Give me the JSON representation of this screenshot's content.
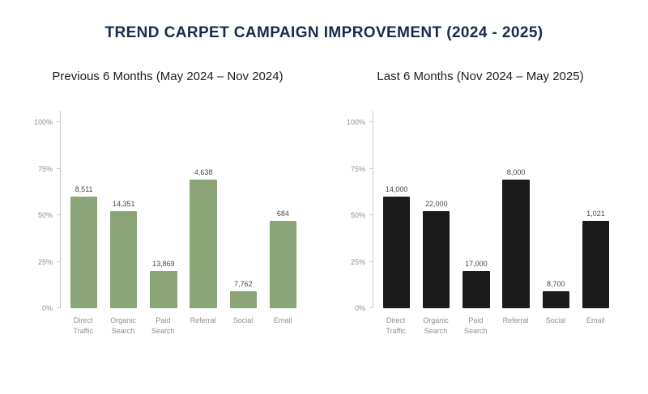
{
  "page": {
    "title": "TREND CARPET CAMPAIGN IMPROVEMENT (2024 - 2025)"
  },
  "colors": {
    "title_text": "#172b4d",
    "previous_bars": "#8ba578",
    "last_bars": "#1b1b1b",
    "axis_line": "#c9c9c9",
    "tick_text": "#8f8f8f"
  },
  "chart_data": [
    {
      "type": "bar",
      "title": "Previous 6 Months (May 2024 – Nov 2024)",
      "categories": [
        "Direct Traffic",
        "Organic Search",
        "Paid Search",
        "Referral",
        "Social",
        "Email"
      ],
      "values_percent": [
        60,
        52,
        20,
        69,
        9,
        47
      ],
      "data_labels": [
        "8,511",
        "14,351",
        "13,869",
        "4,638",
        "7,762",
        "684"
      ],
      "bar_color": "#8ba578",
      "ylim": [
        0,
        100
      ],
      "yticks": [
        "0%",
        "25%",
        "50%",
        "75%",
        "100%"
      ],
      "grid": false,
      "legend": "none"
    },
    {
      "type": "bar",
      "title": "Last 6 Months (Nov 2024 – May 2025)",
      "categories": [
        "Direct Traffic",
        "Organic Search",
        "Paid Search",
        "Referral",
        "Social",
        "Email"
      ],
      "values_percent": [
        60,
        52,
        20,
        69,
        9,
        47
      ],
      "data_labels": [
        "14,000",
        "22,000",
        "17,000",
        "8,000",
        "8,700",
        "1,021"
      ],
      "bar_color": "#1b1b1b",
      "ylim": [
        0,
        100
      ],
      "yticks": [
        "0%",
        "25%",
        "50%",
        "75%",
        "100%"
      ],
      "grid": false,
      "legend": "none"
    }
  ]
}
